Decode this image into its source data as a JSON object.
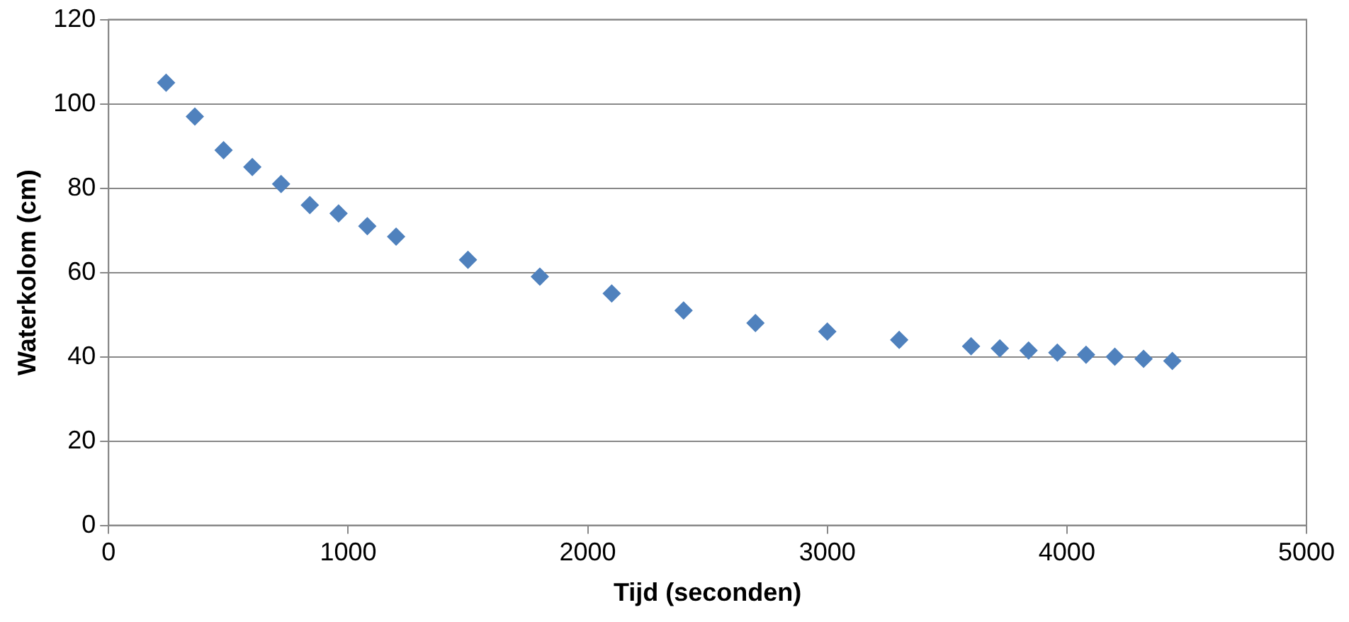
{
  "chart_data": {
    "type": "scatter",
    "xlabel": "Tijd (seconden)",
    "ylabel": "Waterkolom (cm)",
    "x": [
      240,
      360,
      480,
      600,
      720,
      840,
      960,
      1080,
      1200,
      1500,
      1800,
      2100,
      2400,
      2700,
      3000,
      3300,
      3600,
      3720,
      3840,
      3960,
      4080,
      4200,
      4320,
      4440
    ],
    "series": [
      {
        "color": "#4f81bd",
        "values": [
          105,
          97,
          89,
          85,
          81,
          76,
          74,
          71,
          68.5,
          63,
          59,
          55,
          51,
          48,
          46,
          44,
          42.5,
          42,
          41.5,
          41,
          40.5,
          40,
          39.5,
          39
        ]
      }
    ],
    "xlim": [
      0,
      5000
    ],
    "xticks": [
      0,
      1000,
      2000,
      3000,
      4000,
      5000
    ],
    "ylim": [
      0,
      120
    ],
    "yticks": [
      0,
      20,
      40,
      60,
      80,
      100,
      120
    ],
    "grid": "y",
    "legend": false,
    "marker": "diamond"
  }
}
